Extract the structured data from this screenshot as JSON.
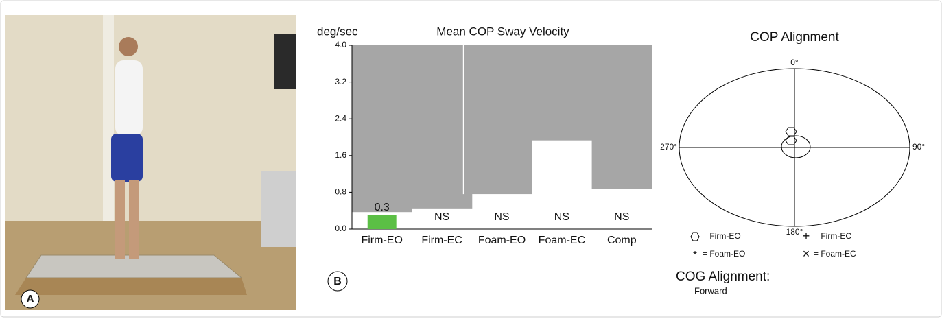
{
  "panels": {
    "a_label": "A",
    "b_label": "B"
  },
  "chart_data": {
    "type": "bar",
    "title": "Mean COP  Sway Velocity",
    "y_label": "deg/sec",
    "categories": [
      "Firm-EO",
      "Firm-EC",
      "Foam-EO",
      "Foam-EC",
      "Comp"
    ],
    "values": [
      0.3,
      null,
      null,
      null,
      null
    ],
    "value_labels": [
      "0.3",
      "NS",
      "NS",
      "NS",
      "NS"
    ],
    "color": "#5bbf45",
    "norm_limits": [
      0.37,
      0.45,
      0.76,
      1.93,
      0.87
    ],
    "norm_color": "#a6a6a6",
    "ylim": [
      0,
      4
    ],
    "yticks": [
      {
        "value": 0,
        "label": "0.0"
      },
      0.8,
      1.6,
      2.4,
      3.2,
      {
        "value": 4,
        "label": "4.0"
      }
    ]
  },
  "cop_alignment": {
    "title": "COP Alignment",
    "angles": [
      "0°",
      "90°",
      "180°",
      "270°"
    ],
    "legend": [
      "= Firm-EO",
      "= Firm-EC",
      "= Foam-EO",
      "= Foam-EC"
    ],
    "cog_title": "COG Alignment:",
    "cog_value": "Forward"
  }
}
